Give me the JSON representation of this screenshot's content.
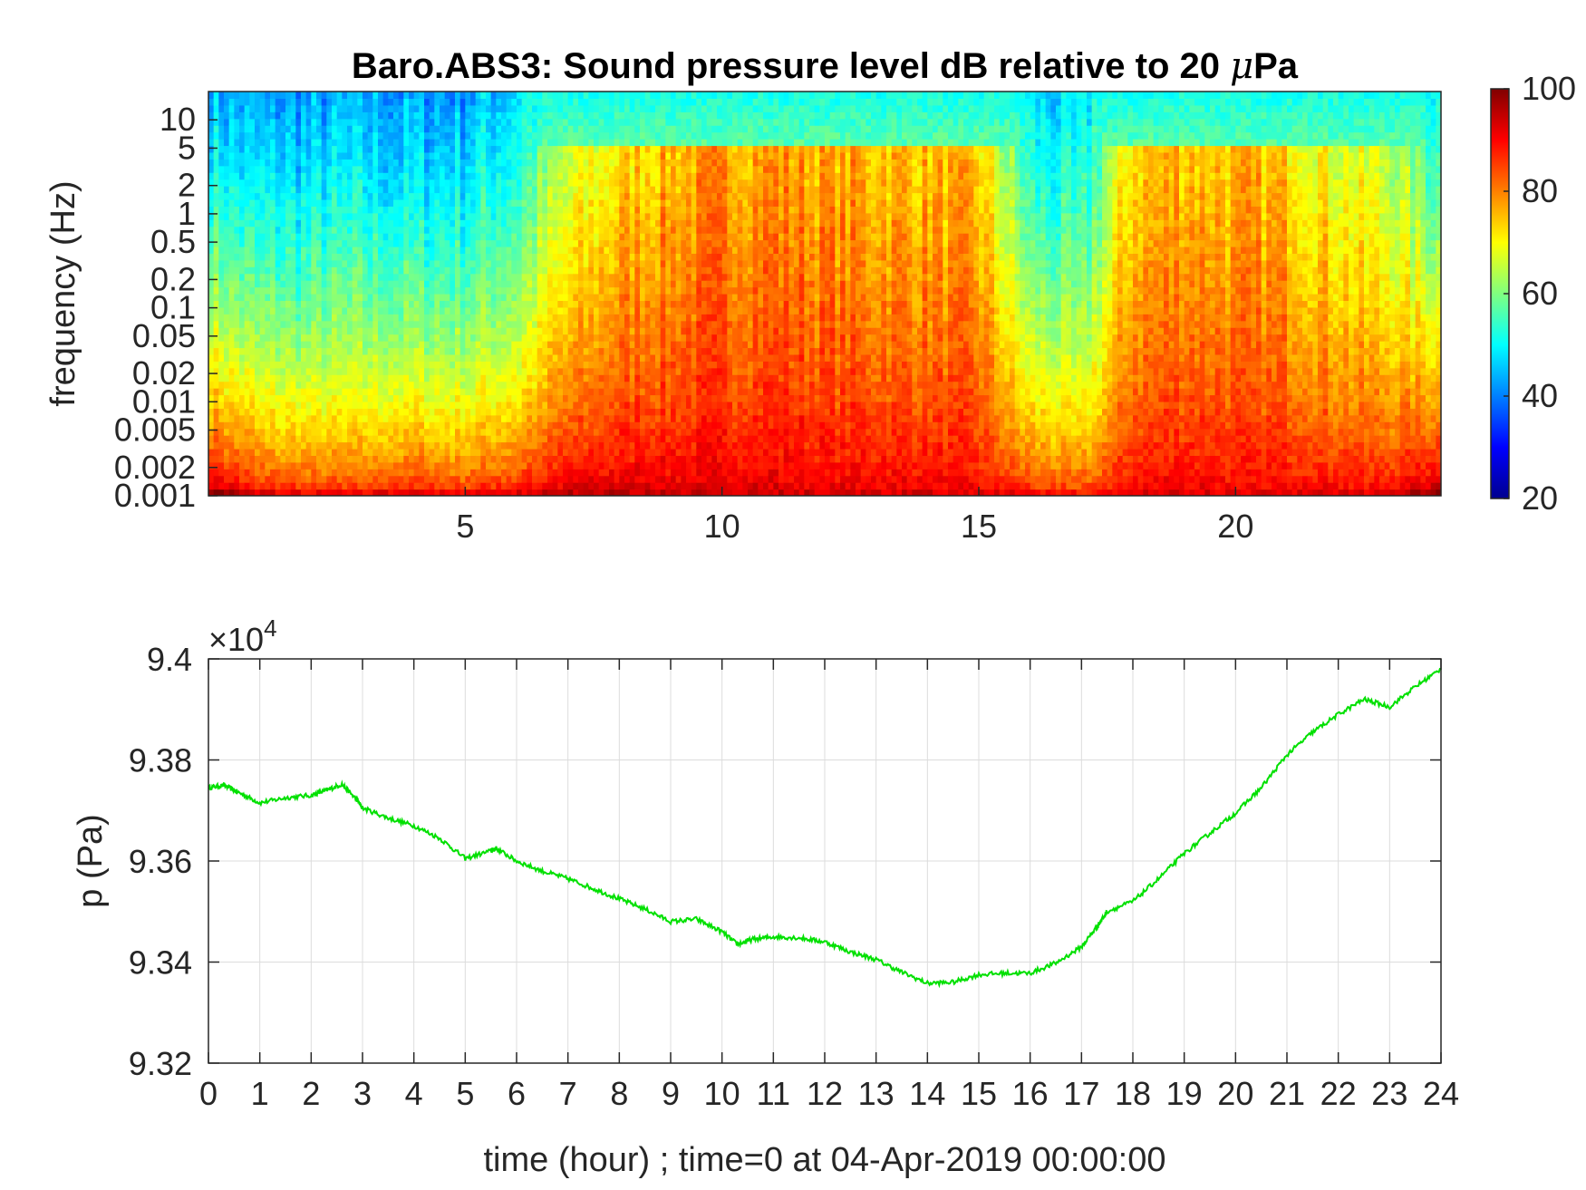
{
  "chart_data": [
    {
      "type": "heatmap",
      "title": "Baro.ABS3: Sound pressure level dB relative to 20 μPa",
      "title_main": "Baro.ABS3: Sound pressure level dB relative to 20 ",
      "title_mu": "μ",
      "title_tail": "Pa",
      "ylabel": "frequency (Hz)",
      "xlabel": "",
      "yscale": "log",
      "ylim": [
        0.001,
        20
      ],
      "xlim": [
        0,
        24
      ],
      "yticks": [
        0.001,
        0.002,
        0.005,
        0.01,
        0.02,
        0.05,
        0.1,
        0.2,
        0.5,
        1,
        2,
        5,
        10
      ],
      "ytick_labels": [
        "0.001",
        "0.002",
        "0.005",
        "0.01",
        "0.02",
        "0.05",
        "0.1",
        "0.2",
        "0.5",
        "1",
        "2",
        "5",
        "10"
      ],
      "xticks": [
        5,
        10,
        15,
        20
      ],
      "xtick_labels": [
        "5",
        "10",
        "15",
        "20"
      ],
      "colormap": "jet",
      "clim": [
        20,
        100
      ],
      "colorbar_ticks": [
        20,
        40,
        60,
        80,
        100
      ],
      "colorbar_tick_labels": [
        "20",
        "40",
        "60",
        "80",
        "100"
      ],
      "energy_by_hour": {
        "hours": [
          0,
          1,
          2,
          3,
          4,
          5,
          6,
          7,
          8,
          9,
          10,
          11,
          12,
          13,
          14,
          15,
          16,
          17,
          18,
          19,
          20,
          21,
          22,
          23,
          24
        ],
        "high_band_dB": [
          45,
          42,
          42,
          43,
          42,
          43,
          48,
          62,
          70,
          74,
          76,
          77,
          75,
          74,
          73,
          72,
          48,
          45,
          72,
          74,
          73,
          72,
          66,
          62,
          50
        ],
        "low_band_dB": [
          100,
          92,
          90,
          90,
          92,
          90,
          92,
          95,
          95,
          94,
          94,
          94,
          93,
          93,
          93,
          92,
          90,
          88,
          92,
          93,
          92,
          92,
          92,
          92,
          100
        ]
      }
    },
    {
      "type": "line",
      "title": "",
      "xlabel": "time (hour) ; time=0 at 04-Apr-2019 00:00:00",
      "ylabel": "p (Pa)",
      "y_exponent_label": "10",
      "y_exponent_power": "4",
      "y_exponent_prefix": "×",
      "xlim": [
        0,
        24
      ],
      "ylim": [
        9.32,
        9.4
      ],
      "grid": true,
      "line_color": "#00e000",
      "xticks": [
        0,
        1,
        2,
        3,
        4,
        5,
        6,
        7,
        8,
        9,
        10,
        11,
        12,
        13,
        14,
        15,
        16,
        17,
        18,
        19,
        20,
        21,
        22,
        23,
        24
      ],
      "xtick_labels": [
        "0",
        "1",
        "2",
        "3",
        "4",
        "5",
        "6",
        "7",
        "8",
        "9",
        "10",
        "11",
        "12",
        "13",
        "14",
        "15",
        "16",
        "17",
        "18",
        "19",
        "20",
        "21",
        "22",
        "23",
        "24"
      ],
      "yticks": [
        9.32,
        9.34,
        9.36,
        9.38,
        9.4
      ],
      "ytick_labels": [
        "9.32",
        "9.34",
        "9.36",
        "9.38",
        "9.4"
      ],
      "series": [
        {
          "x": [
            0,
            0.3,
            0.6,
            1.0,
            1.5,
            2.0,
            2.3,
            2.6,
            2.9,
            3.0,
            3.5,
            4.0,
            4.5,
            5.0,
            5.5,
            5.6,
            6.0,
            6.5,
            7.0,
            7.5,
            8.0,
            8.5,
            9.0,
            9.5,
            10.0,
            10.3,
            10.6,
            11.0,
            11.5,
            12.0,
            12.5,
            13.0,
            13.5,
            14.0,
            14.5,
            15.0,
            15.5,
            16.0,
            16.5,
            17.0,
            17.3,
            17.5,
            18.0,
            18.5,
            19.0,
            19.5,
            20.0,
            20.5,
            21.0,
            21.5,
            22.0,
            22.5,
            23.0,
            23.5,
            24.0
          ],
          "y": [
            9.3745,
            9.375,
            9.3735,
            9.3715,
            9.3725,
            9.373,
            9.374,
            9.3752,
            9.372,
            9.3705,
            9.3685,
            9.367,
            9.3645,
            9.3605,
            9.362,
            9.3625,
            9.36,
            9.358,
            9.3565,
            9.3545,
            9.3525,
            9.3505,
            9.348,
            9.3485,
            9.346,
            9.3435,
            9.3445,
            9.345,
            9.3448,
            9.344,
            9.342,
            9.3405,
            9.338,
            9.3358,
            9.336,
            9.3375,
            9.3378,
            9.3378,
            9.3398,
            9.343,
            9.347,
            9.35,
            9.352,
            9.3565,
            9.3615,
            9.3655,
            9.3695,
            9.3745,
            9.381,
            9.3855,
            9.389,
            9.392,
            9.3905,
            9.3945,
            9.398
          ]
        }
      ]
    }
  ]
}
